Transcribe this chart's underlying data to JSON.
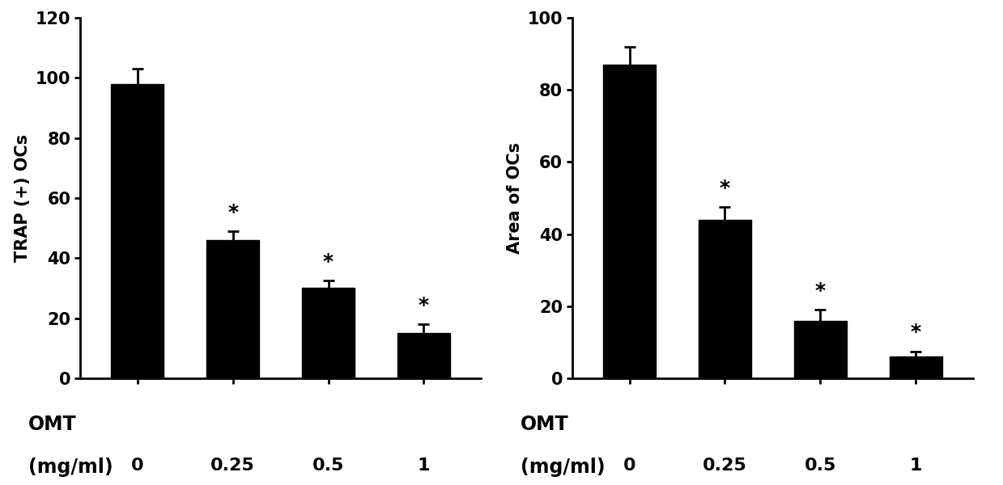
{
  "left_chart": {
    "ylabel": "TRAP (+) OCs",
    "categories": [
      "0",
      "0.25",
      "0.5",
      "1"
    ],
    "values": [
      98,
      46,
      30,
      15
    ],
    "errors": [
      5,
      3,
      2.5,
      3
    ],
    "ylim": [
      0,
      120
    ],
    "yticks": [
      0,
      20,
      40,
      60,
      80,
      100,
      120
    ],
    "significance": [
      false,
      true,
      true,
      true
    ]
  },
  "right_chart": {
    "ylabel": "Area of OCs",
    "categories": [
      "0",
      "0.25",
      "0.5",
      "1"
    ],
    "values": [
      87,
      44,
      16,
      6
    ],
    "errors": [
      5,
      3.5,
      3,
      1.5
    ],
    "ylim": [
      0,
      100
    ],
    "yticks": [
      0,
      20,
      40,
      60,
      80,
      100
    ],
    "significance": [
      false,
      true,
      true,
      true
    ]
  },
  "xlabel_top": "OMT",
  "xlabel_bottom": "(mg/ml)",
  "bar_color": "#000000",
  "bar_width": 0.55,
  "tick_fontsize": 15,
  "label_fontsize": 15,
  "xlabel_fontsize": 17,
  "star_fontsize": 18,
  "background_color": "#ffffff"
}
